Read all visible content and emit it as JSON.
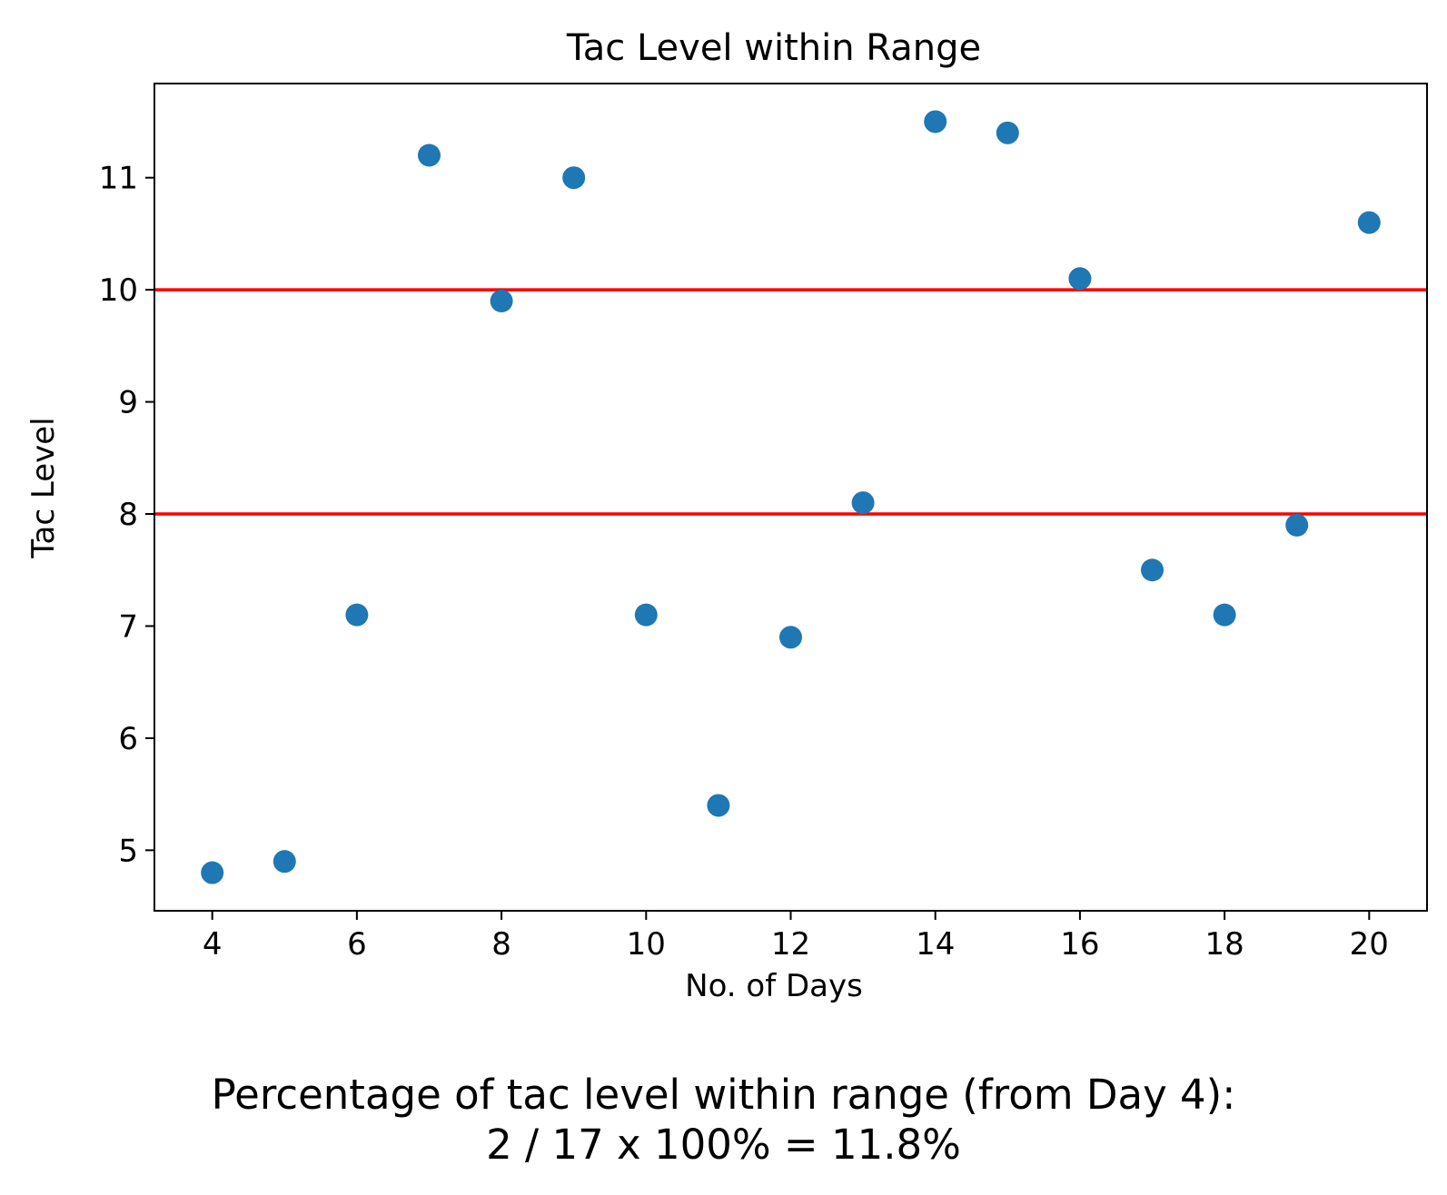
{
  "chart_data": {
    "type": "scatter",
    "title": "Tac Level within Range",
    "xlabel": "No. of Days",
    "ylabel": "Tac Level",
    "xlim": [
      3.2,
      20.8
    ],
    "ylim": [
      4.46,
      11.84
    ],
    "xticks": [
      4,
      6,
      8,
      10,
      12,
      14,
      16,
      18,
      20
    ],
    "yticks": [
      5,
      6,
      7,
      8,
      9,
      10,
      11
    ],
    "grid": false,
    "series": [
      {
        "color": "#1f77b4",
        "points": [
          {
            "x": 4,
            "y": 4.8
          },
          {
            "x": 5,
            "y": 4.9
          },
          {
            "x": 6,
            "y": 7.1
          },
          {
            "x": 7,
            "y": 11.2
          },
          {
            "x": 8,
            "y": 9.9
          },
          {
            "x": 9,
            "y": 11.0
          },
          {
            "x": 10,
            "y": 7.1
          },
          {
            "x": 11,
            "y": 5.4
          },
          {
            "x": 12,
            "y": 6.9
          },
          {
            "x": 13,
            "y": 8.1
          },
          {
            "x": 14,
            "y": 11.5
          },
          {
            "x": 15,
            "y": 11.4
          },
          {
            "x": 16,
            "y": 10.1
          },
          {
            "x": 17,
            "y": 7.5
          },
          {
            "x": 18,
            "y": 7.1
          },
          {
            "x": 19,
            "y": 7.9
          },
          {
            "x": 20,
            "y": 10.6
          }
        ]
      }
    ],
    "reference_lines": [
      {
        "y": 10,
        "color": "#ff0000"
      },
      {
        "y": 8,
        "color": "#ff0000"
      }
    ]
  },
  "caption": {
    "line1": "Percentage of tac level within range (from Day 4):",
    "line2": "2 / 17 x 100% = 11.8%"
  }
}
